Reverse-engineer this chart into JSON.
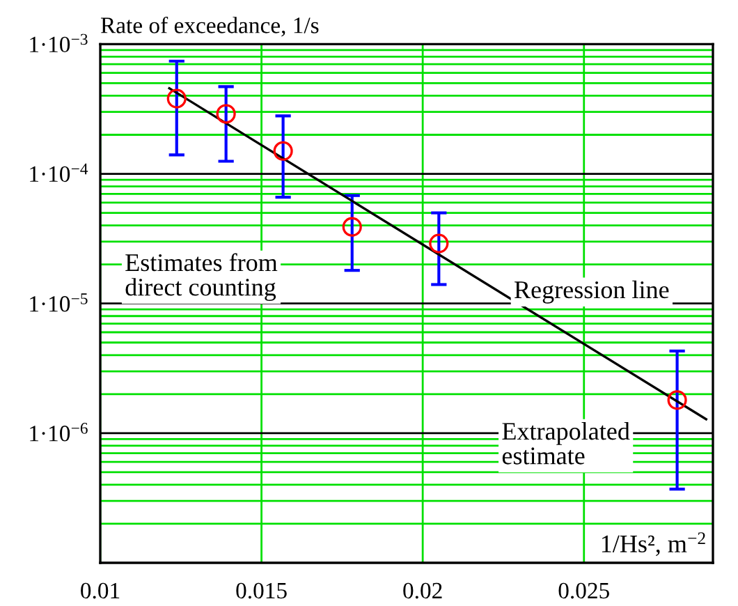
{
  "chart_data": {
    "type": "scatter",
    "ylabel": "Rate of exceedance, 1/s",
    "xlabel": "1/Hs², m$^{−2}$",
    "annotations": [
      "Estimates from\ndirect counting",
      "Regression line",
      "Extrapolated\nestimate"
    ],
    "log": "y",
    "xlim": [
      0.01,
      0.029
    ],
    "xticks": [
      0.01,
      0.015,
      0.02,
      0.025
    ],
    "ylim": [
      1e-07,
      0.001
    ],
    "yticks": [
      {
        "value": 1e-06,
        "label": "1·10$^{−6}$"
      },
      {
        "value": 1e-05,
        "label": "1·10$^{−5}$"
      },
      {
        "value": 0.0001,
        "label": "1·10$^{−4}$"
      },
      {
        "value": 0.001,
        "label": "1·10$^{−3}$"
      }
    ],
    "grid": true,
    "series": [
      {
        "marker": "circle",
        "color": "#ff0000",
        "x": [
          0.01237,
          0.0139,
          0.01567,
          0.01781,
          0.0205,
          0.02789
        ],
        "values": [
          0.00038,
          0.00029,
          0.00015,
          3.9e-05,
          2.9e-05,
          1.8e-06
        ],
        "errors": [
          [
            0.00014,
            0.00074
          ],
          [
            0.000125,
            0.00047
          ],
          [
            6.6e-05,
            0.00028
          ],
          [
            1.8e-05,
            6.8e-05
          ],
          [
            1.4e-05,
            5e-05
          ],
          [
            3.7e-07,
            4.3e-06
          ]
        ]
      },
      {
        "type": "line",
        "color": "#000000",
        "x": [
          0.01214,
          0.02879
        ],
        "values": [
          0.000457,
          1.28e-06
        ]
      }
    ]
  }
}
